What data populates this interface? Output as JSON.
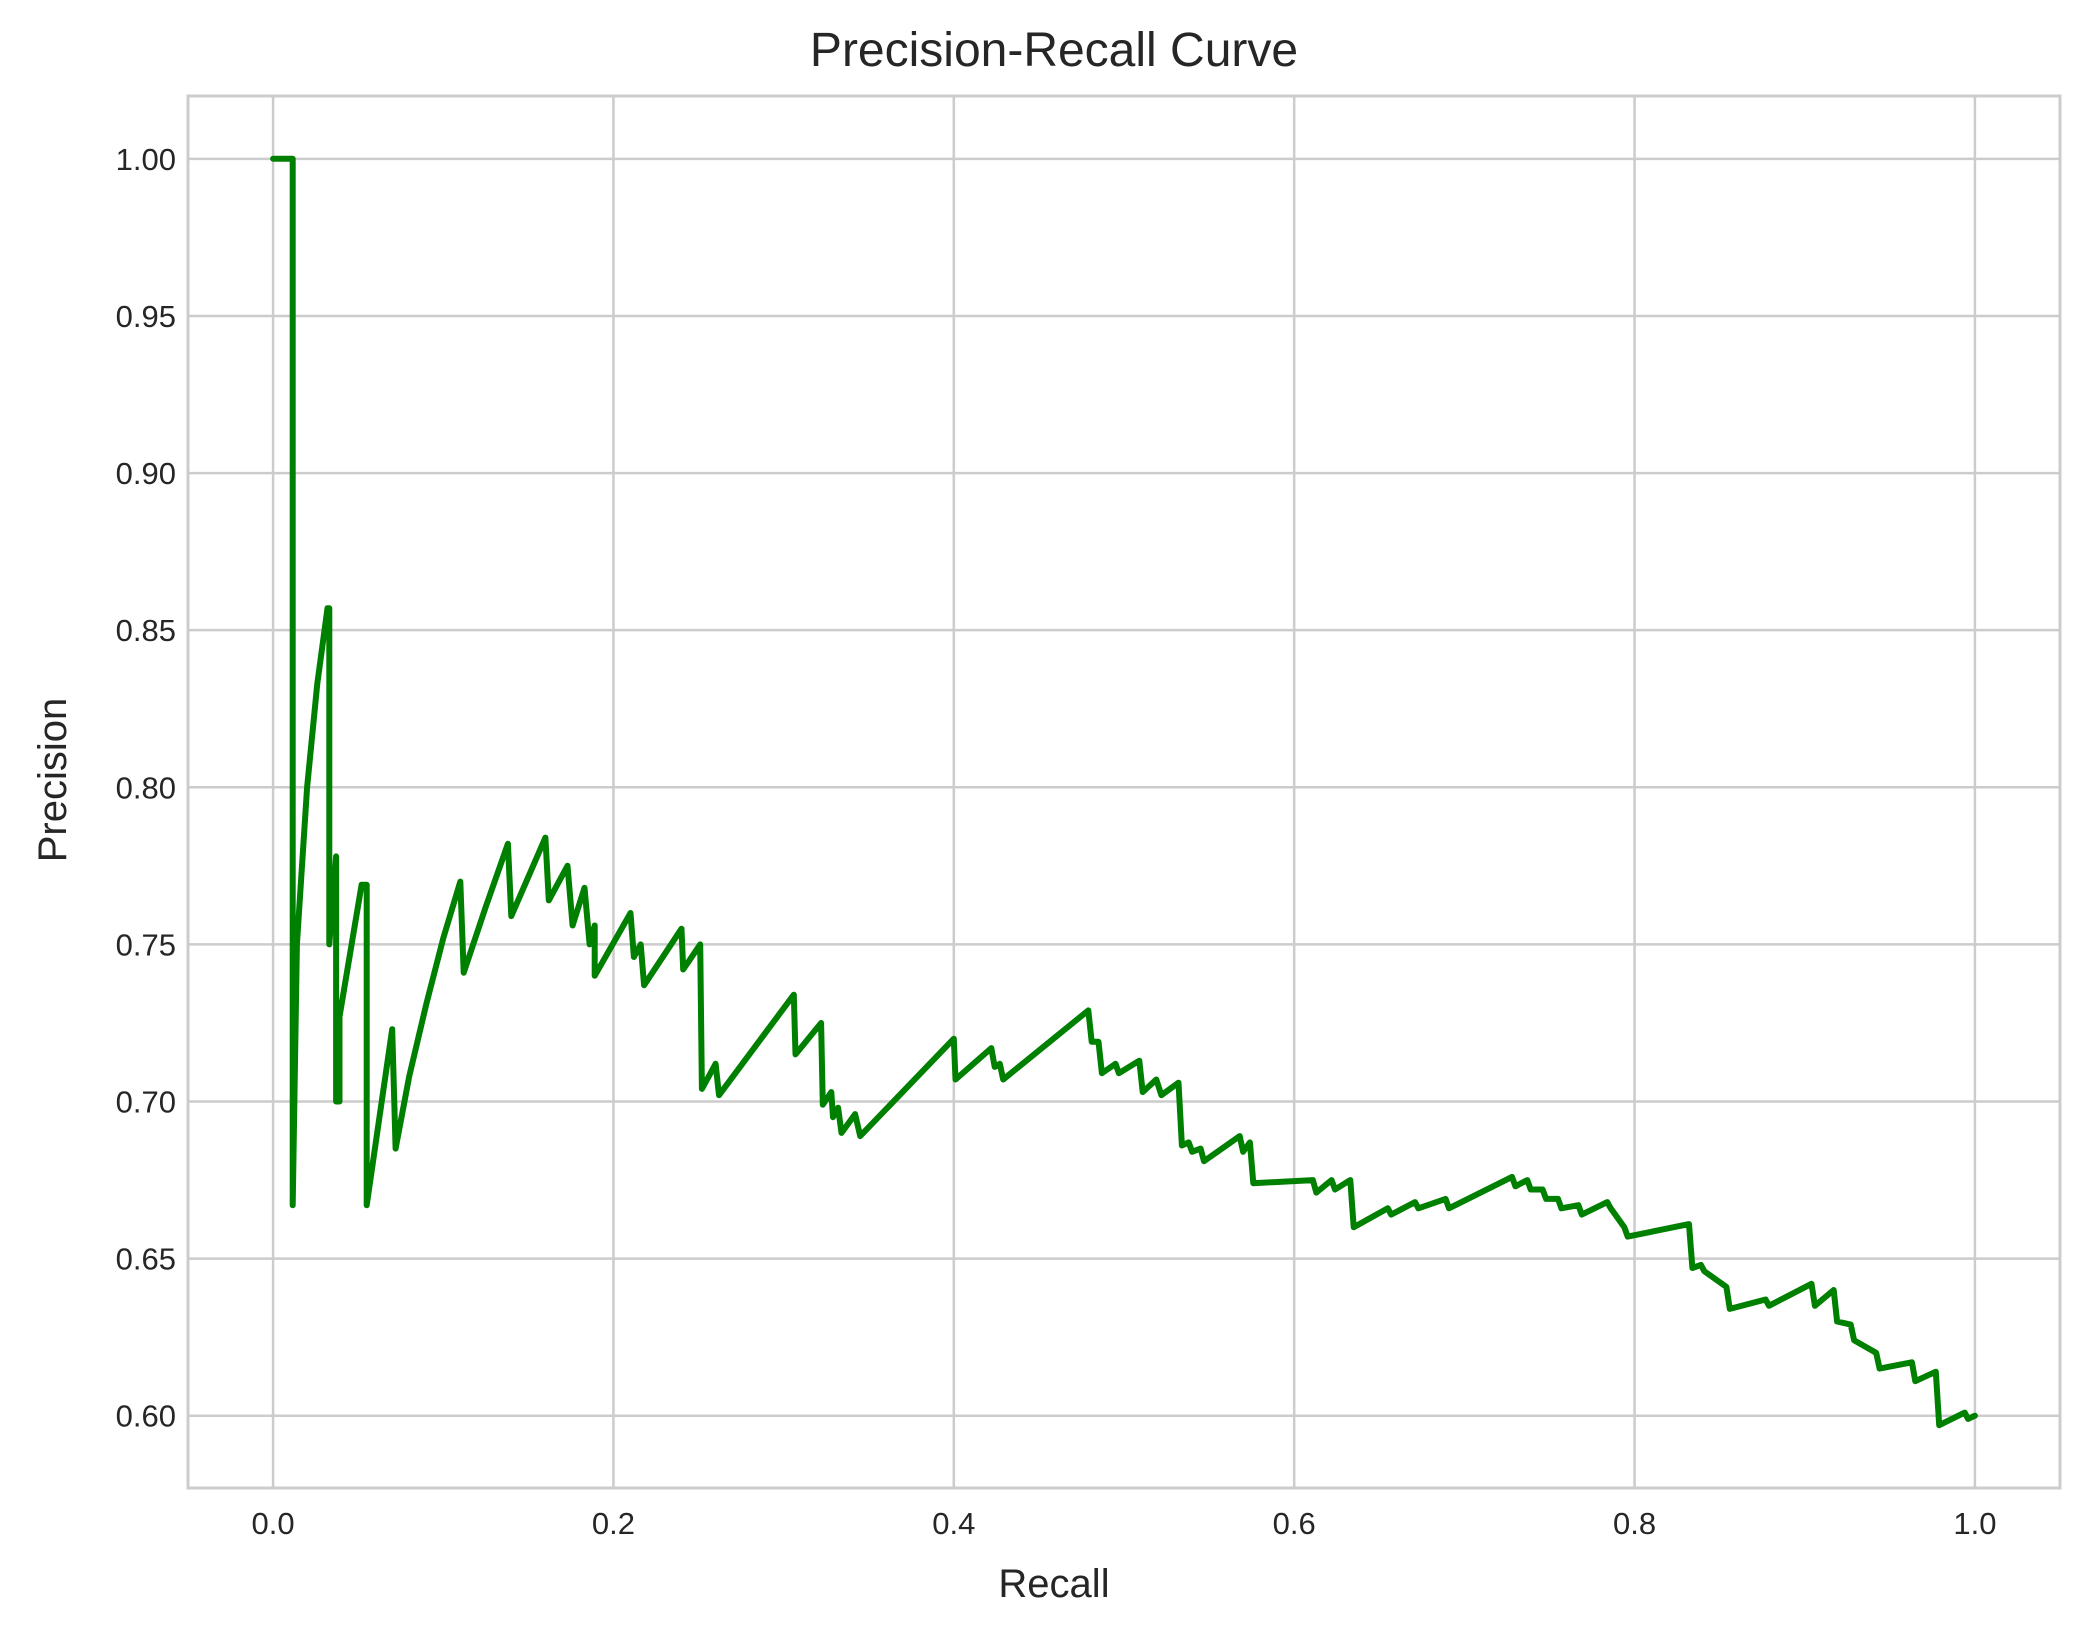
{
  "chart_data": {
    "type": "line",
    "title": "Precision-Recall Curve",
    "xlabel": "Recall",
    "ylabel": "Precision",
    "xlim": [
      -0.05,
      1.05
    ],
    "ylim": [
      0.577,
      1.02
    ],
    "xticks": [
      0.0,
      0.2,
      0.4,
      0.6,
      0.8,
      1.0
    ],
    "xtick_labels": [
      "0.0",
      "0.2",
      "0.4",
      "0.6",
      "0.8",
      "1.0"
    ],
    "yticks": [
      0.6,
      0.65,
      0.7,
      0.75,
      0.8,
      0.85,
      0.9,
      0.95,
      1.0
    ],
    "ytick_labels": [
      "0.60",
      "0.65",
      "0.70",
      "0.75",
      "0.80",
      "0.85",
      "0.90",
      "0.95",
      "1.00"
    ],
    "grid": true,
    "colors": {
      "line": "#008000",
      "grid": "#cccccc",
      "frame": "#cccccc",
      "text": "#262626"
    },
    "series": [
      {
        "x": [
          0.0,
          0.0115,
          0.0115,
          0.014,
          0.02,
          0.026,
          0.032,
          0.033,
          0.033,
          0.037,
          0.037,
          0.039,
          0.039,
          0.052,
          0.055,
          0.055,
          0.07,
          0.072,
          0.08,
          0.09,
          0.1,
          0.11,
          0.112,
          0.125,
          0.138,
          0.14,
          0.16,
          0.162,
          0.166,
          0.173,
          0.176,
          0.183,
          0.186,
          0.189,
          0.189,
          0.21,
          0.212,
          0.216,
          0.218,
          0.24,
          0.241,
          0.251,
          0.252,
          0.26,
          0.262,
          0.306,
          0.307,
          0.322,
          0.323,
          0.328,
          0.329,
          0.332,
          0.334,
          0.342,
          0.345,
          0.4,
          0.401,
          0.422,
          0.424,
          0.427,
          0.429,
          0.479,
          0.481,
          0.485,
          0.487,
          0.495,
          0.497,
          0.509,
          0.511,
          0.519,
          0.522,
          0.532,
          0.534,
          0.538,
          0.54,
          0.545,
          0.547,
          0.568,
          0.57,
          0.574,
          0.576,
          0.611,
          0.613,
          0.622,
          0.624,
          0.633,
          0.635,
          0.655,
          0.657,
          0.671,
          0.673,
          0.689,
          0.691,
          0.728,
          0.73,
          0.737,
          0.739,
          0.746,
          0.748,
          0.755,
          0.757,
          0.767,
          0.769,
          0.784,
          0.786,
          0.794,
          0.796,
          0.832,
          0.834,
          0.839,
          0.841,
          0.854,
          0.856,
          0.877,
          0.879,
          0.904,
          0.906,
          0.917,
          0.919,
          0.927,
          0.929,
          0.942,
          0.944,
          0.963,
          0.965,
          0.977,
          0.979,
          0.994,
          0.996,
          1.0
        ],
        "y": [
          1.0,
          1.0,
          0.667,
          0.75,
          0.8,
          0.833,
          0.857,
          0.857,
          0.75,
          0.778,
          0.7,
          0.7,
          0.727,
          0.769,
          0.769,
          0.667,
          0.723,
          0.685,
          0.708,
          0.731,
          0.752,
          0.77,
          0.741,
          0.762,
          0.782,
          0.759,
          0.784,
          0.764,
          0.768,
          0.775,
          0.756,
          0.768,
          0.75,
          0.756,
          0.74,
          0.76,
          0.746,
          0.75,
          0.737,
          0.755,
          0.742,
          0.75,
          0.704,
          0.712,
          0.702,
          0.734,
          0.715,
          0.725,
          0.699,
          0.703,
          0.695,
          0.698,
          0.69,
          0.696,
          0.689,
          0.72,
          0.707,
          0.717,
          0.711,
          0.712,
          0.707,
          0.729,
          0.719,
          0.719,
          0.709,
          0.712,
          0.709,
          0.713,
          0.703,
          0.707,
          0.702,
          0.706,
          0.686,
          0.687,
          0.684,
          0.685,
          0.681,
          0.689,
          0.684,
          0.687,
          0.674,
          0.675,
          0.671,
          0.675,
          0.672,
          0.675,
          0.66,
          0.666,
          0.664,
          0.668,
          0.666,
          0.669,
          0.666,
          0.676,
          0.673,
          0.675,
          0.672,
          0.672,
          0.669,
          0.669,
          0.666,
          0.667,
          0.664,
          0.668,
          0.666,
          0.66,
          0.657,
          0.661,
          0.647,
          0.648,
          0.646,
          0.641,
          0.634,
          0.637,
          0.635,
          0.642,
          0.635,
          0.64,
          0.63,
          0.629,
          0.624,
          0.62,
          0.615,
          0.617,
          0.611,
          0.614,
          0.597,
          0.601,
          0.599,
          0.6
        ]
      }
    ]
  }
}
